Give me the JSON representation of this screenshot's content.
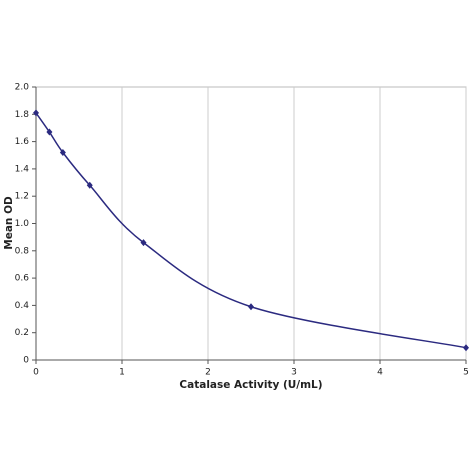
{
  "chart_data": {
    "type": "scatter",
    "smooth_line": true,
    "x_label": "Catalase Activity (U/mL)",
    "y_label": "Mean OD",
    "series": [
      {
        "color": "#2b2a80",
        "x": [
          0,
          0.156,
          0.3125,
          0.625,
          1.25,
          2.5,
          5
        ],
        "values": [
          1.81,
          1.67,
          1.52,
          1.28,
          0.86,
          0.39,
          0.09
        ]
      }
    ],
    "xlim": [
      0,
      5
    ],
    "xticks": [
      0,
      1,
      2,
      3,
      4,
      5
    ],
    "ylim": [
      0,
      2.0
    ],
    "yticks": [
      0,
      0.2,
      0.4,
      0.6,
      0.8,
      {
        "value": 1.0,
        "label": "1.0"
      },
      1.2,
      1.4,
      1.6,
      1.8,
      {
        "value": 2.0,
        "label": "2.0"
      }
    ],
    "grid": "x"
  }
}
